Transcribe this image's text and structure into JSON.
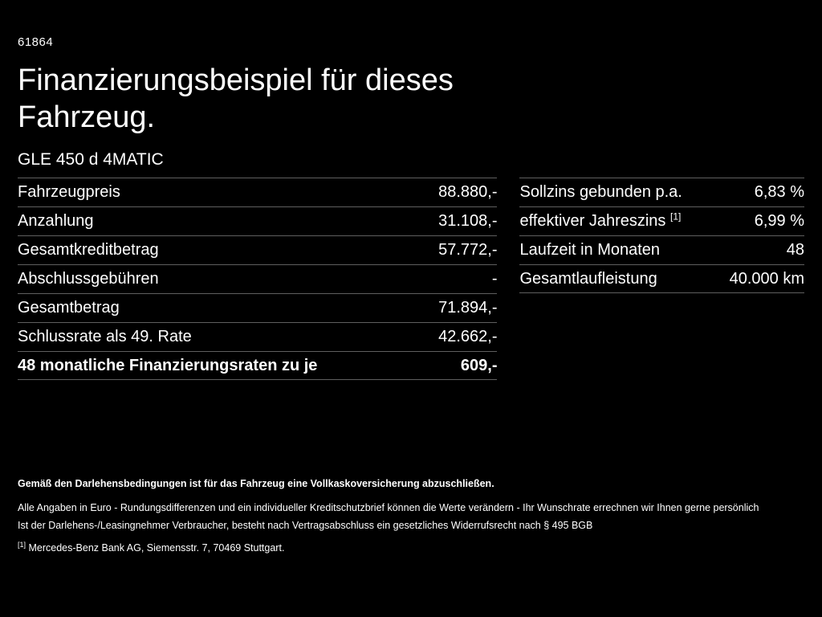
{
  "page": {
    "code": "61864",
    "title_line1": "Finanzierungsbeispiel für dieses",
    "title_line2": "Fahrzeug.",
    "model": "GLE 450 d 4MATIC"
  },
  "left_table": {
    "rows": [
      {
        "label": "Fahrzeugpreis",
        "value": "88.880,-"
      },
      {
        "label": "Anzahlung",
        "value": "31.108,-"
      },
      {
        "label": "Gesamtkreditbetrag",
        "value": "57.772,-"
      },
      {
        "label": "Abschlussgebühren",
        "value": "-"
      },
      {
        "label": "Gesamtbetrag",
        "value": "71.894,-"
      },
      {
        "label": "Schlussrate als 49. Rate",
        "value": "42.662,-"
      },
      {
        "label": "48 monatliche Finanzierungsraten zu je",
        "value": "609,-"
      }
    ]
  },
  "right_table": {
    "rows": [
      {
        "label": "Sollzins gebunden p.a.",
        "sup": "",
        "value": "6,83 %"
      },
      {
        "label": "effektiver Jahreszins",
        "sup": "[1]",
        "value": "6,99 %"
      },
      {
        "label": "Laufzeit in Monaten",
        "sup": "",
        "value": "48"
      },
      {
        "label": "Gesamtlaufleistung",
        "sup": "",
        "value": "40.000 km"
      }
    ]
  },
  "footer": {
    "bold_note": "Gemäß den Darlehensbedingungen ist für das Fahrzeug eine Vollkaskoversicherung abzuschließen.",
    "note1": "Alle Angaben in Euro - Rundungsdifferenzen und ein individueller Kreditschutzbrief können die Werte verändern - Ihr Wunschrate errechnen wir Ihnen gerne persönlich",
    "note2": "Ist der Darlehens-/Leasingnehmer Verbraucher, besteht nach Vertragsabschluss ein gesetzliches Widerrufsrecht nach § 495 BGB",
    "footnote_marker": "[1]",
    "footnote": "Mercedes-Benz Bank AG, Siemensstr. 7, 70469 Stuttgart."
  },
  "colors": {
    "background": "#000000",
    "text": "#ffffff",
    "divider": "#5f5f5f"
  }
}
